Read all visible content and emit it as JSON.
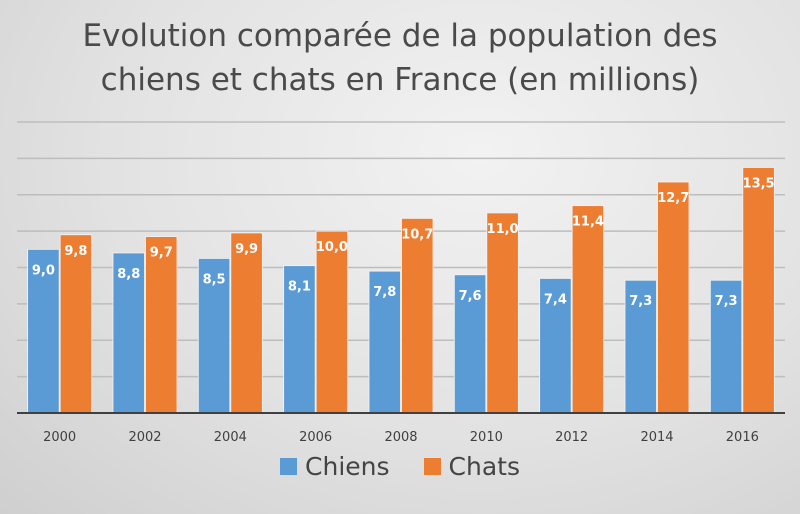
{
  "chart_data": {
    "type": "bar",
    "title": "Evolution comparée de la population des chiens et chats en France (en millions)",
    "title_lines": [
      "Evolution comparée de la population des",
      "chiens et chats en France (en millions)"
    ],
    "categories": [
      "2000",
      "2002",
      "2004",
      "2006",
      "2008",
      "2010",
      "2012",
      "2014",
      "2016"
    ],
    "series": [
      {
        "name": "Chiens",
        "color": "#5b9bd5",
        "values": [
          9.0,
          8.8,
          8.5,
          8.1,
          7.8,
          7.6,
          7.4,
          7.3,
          7.3
        ],
        "labels": [
          "9,0",
          "8,8",
          "8,5",
          "8,1",
          "7,8",
          "7,6",
          "7,4",
          "7,3",
          "7,3"
        ]
      },
      {
        "name": "Chats",
        "color": "#ed7d31",
        "values": [
          9.8,
          9.7,
          9.9,
          10.0,
          10.7,
          11.0,
          11.4,
          12.7,
          13.5
        ],
        "labels": [
          "9,8",
          "9,7",
          "9,9",
          "10,0",
          "10,7",
          "11,0",
          "11,4",
          "12,7",
          "13,5"
        ]
      }
    ],
    "xlabel": "",
    "ylabel": "",
    "ylim": [
      0,
      16
    ],
    "ytick_step": 2,
    "grid": true,
    "y_tick_labels_shown": false,
    "legend": "bottom"
  }
}
